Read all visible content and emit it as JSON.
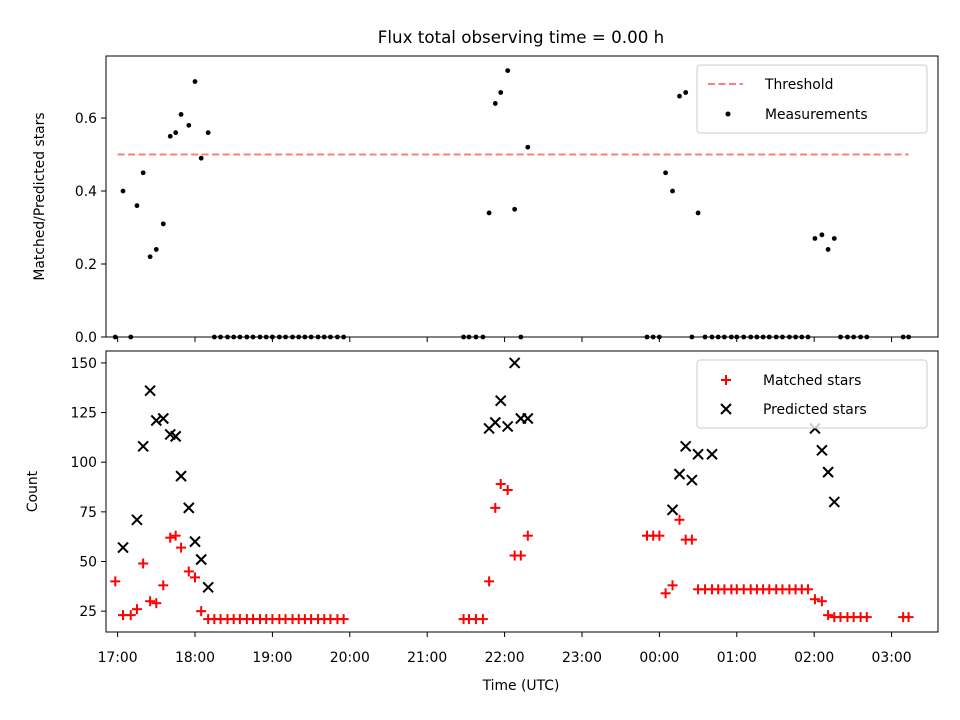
{
  "chart_data": [
    {
      "type": "scatter",
      "title": "Flux total observing time = 0.00 h",
      "xlabel": "",
      "ylabel": "Matched/Predicted stars",
      "xlim": [
        -0.15,
        10.6
      ],
      "ylim": [
        0,
        0.77
      ],
      "yticks": [
        0.0,
        0.2,
        0.4,
        0.6
      ],
      "ytick_labels": [
        "0.0",
        "0.2",
        "0.4",
        "0.6"
      ],
      "legend": {
        "placement": "top-right",
        "entries": [
          "Threshold",
          "Measurements"
        ]
      },
      "threshold": {
        "name": "Threshold",
        "y": 0.5,
        "x_start": 0.0,
        "x_end": 10.22,
        "color": "#ff7f7f"
      },
      "series": [
        {
          "name": "Measurements",
          "marker": "dot",
          "color": "#000000",
          "x": [
            -0.03,
            0.07,
            0.17,
            0.25,
            0.33,
            0.42,
            0.5,
            0.59,
            0.68,
            0.75,
            0.82,
            0.92,
            1.0,
            1.08,
            1.17,
            1.25,
            1.33,
            1.42,
            1.5,
            1.58,
            1.67,
            1.75,
            1.84,
            1.92,
            2.0,
            2.09,
            2.17,
            2.26,
            2.34,
            2.42,
            2.5,
            2.59,
            2.67,
            2.75,
            2.84,
            2.92,
            4.47,
            4.54,
            4.63,
            4.72,
            4.8,
            4.88,
            4.95,
            5.04,
            5.13,
            5.21,
            5.3,
            6.84,
            6.92,
            7.0,
            7.08,
            7.17,
            7.26,
            7.34,
            7.42,
            7.5,
            7.59,
            7.68,
            7.76,
            7.84,
            7.93,
            8.0,
            8.09,
            8.18,
            8.26,
            8.34,
            8.42,
            8.51,
            8.59,
            8.68,
            8.76,
            8.84,
            8.92,
            9.01,
            9.1,
            9.18,
            9.26,
            9.34,
            9.43,
            9.51,
            9.6,
            9.68,
            10.15,
            10.22
          ],
          "y": [
            0.0,
            0.4,
            0.0,
            0.36,
            0.45,
            0.22,
            0.24,
            0.31,
            0.55,
            0.56,
            0.61,
            0.58,
            0.7,
            0.49,
            0.56,
            0.0,
            0.0,
            0.0,
            0.0,
            0.0,
            0.0,
            0.0,
            0.0,
            0.0,
            0.0,
            0.0,
            0.0,
            0.0,
            0.0,
            0.0,
            0.0,
            0.0,
            0.0,
            0.0,
            0.0,
            0.0,
            0.0,
            0.0,
            0.0,
            0.0,
            0.34,
            0.64,
            0.67,
            0.73,
            0.35,
            0.0,
            0.52,
            0.0,
            0.0,
            0.0,
            0.45,
            0.4,
            0.66,
            0.67,
            0.0,
            0.34,
            0.0,
            0.0,
            0.0,
            0.0,
            0.0,
            0.0,
            0.0,
            0.0,
            0.0,
            0.0,
            0.0,
            0.0,
            0.0,
            0.0,
            0.0,
            0.0,
            0.0,
            0.27,
            0.28,
            0.24,
            0.27,
            0.0,
            0.0,
            0.0,
            0.0,
            0.0,
            0.0,
            0.0
          ]
        }
      ]
    },
    {
      "type": "scatter",
      "title": "",
      "xlabel": "Time (UTC)",
      "ylabel": "Count",
      "xlim": [
        -0.15,
        10.6
      ],
      "ylim": [
        14.5,
        156
      ],
      "yticks": [
        25,
        50,
        75,
        100,
        125,
        150
      ],
      "ytick_labels": [
        "25",
        "50",
        "75",
        "100",
        "125",
        "150"
      ],
      "xticks": [
        0.0,
        1.0,
        2.0,
        3.0,
        4.0,
        5.0,
        6.0,
        7.0,
        8.0,
        9.0,
        10.0
      ],
      "xtick_labels": [
        "17:00",
        "18:00",
        "19:00",
        "20:00",
        "21:00",
        "22:00",
        "23:00",
        "00:00",
        "01:00",
        "02:00",
        "03:00"
      ],
      "legend": {
        "placement": "top-right",
        "entries": [
          "Matched stars",
          "Predicted stars"
        ]
      },
      "series": [
        {
          "name": "Matched stars",
          "marker": "plus",
          "color": "#ff0000",
          "x": [
            -0.03,
            0.07,
            0.17,
            0.25,
            0.33,
            0.42,
            0.5,
            0.59,
            0.68,
            0.75,
            0.82,
            0.92,
            1.0,
            1.08,
            1.17,
            1.25,
            1.33,
            1.42,
            1.5,
            1.58,
            1.67,
            1.75,
            1.84,
            1.92,
            2.0,
            2.09,
            2.17,
            2.26,
            2.34,
            2.42,
            2.5,
            2.59,
            2.67,
            2.75,
            2.84,
            2.92,
            4.47,
            4.54,
            4.63,
            4.72,
            4.8,
            4.88,
            4.95,
            5.04,
            5.13,
            5.21,
            5.3,
            6.84,
            6.92,
            7.0,
            7.08,
            7.17,
            7.26,
            7.34,
            7.42,
            7.5,
            7.59,
            7.68,
            7.76,
            7.84,
            7.93,
            8.0,
            8.09,
            8.18,
            8.26,
            8.34,
            8.42,
            8.51,
            8.59,
            8.68,
            8.76,
            8.84,
            8.92,
            9.01,
            9.1,
            9.18,
            9.26,
            9.34,
            9.43,
            9.51,
            9.6,
            9.68,
            10.15,
            10.22
          ],
          "y": [
            40,
            23,
            23,
            26,
            49,
            30,
            29,
            38,
            62,
            63,
            57,
            45,
            42,
            25,
            21,
            21,
            21,
            21,
            21,
            21,
            21,
            21,
            21,
            21,
            21,
            21,
            21,
            21,
            21,
            21,
            21,
            21,
            21,
            21,
            21,
            21,
            21,
            21,
            21,
            21,
            40,
            77,
            89,
            86,
            53,
            53,
            63,
            63,
            63,
            63,
            34,
            38,
            71,
            61,
            61,
            36,
            36,
            36,
            36,
            36,
            36,
            36,
            36,
            36,
            36,
            36,
            36,
            36,
            36,
            36,
            36,
            36,
            36,
            31,
            30,
            23,
            22,
            22,
            22,
            22,
            22,
            22,
            22,
            22
          ]
        },
        {
          "name": "Predicted stars",
          "marker": "cross",
          "color": "#000000",
          "x": [
            0.07,
            0.25,
            0.33,
            0.42,
            0.5,
            0.59,
            0.68,
            0.75,
            0.82,
            0.92,
            1.0,
            1.08,
            1.17,
            4.8,
            4.88,
            4.95,
            5.04,
            5.13,
            5.21,
            5.3,
            7.17,
            7.26,
            7.34,
            7.42,
            7.5,
            7.68,
            9.01,
            9.1,
            9.18,
            9.26
          ],
          "y": [
            57,
            71,
            108,
            136,
            121,
            122,
            114,
            113,
            93,
            77,
            60,
            51,
            37,
            117,
            120,
            131,
            118,
            150,
            122,
            122,
            76,
            94,
            108,
            91,
            104,
            104,
            117,
            106,
            95,
            80
          ]
        }
      ]
    }
  ]
}
